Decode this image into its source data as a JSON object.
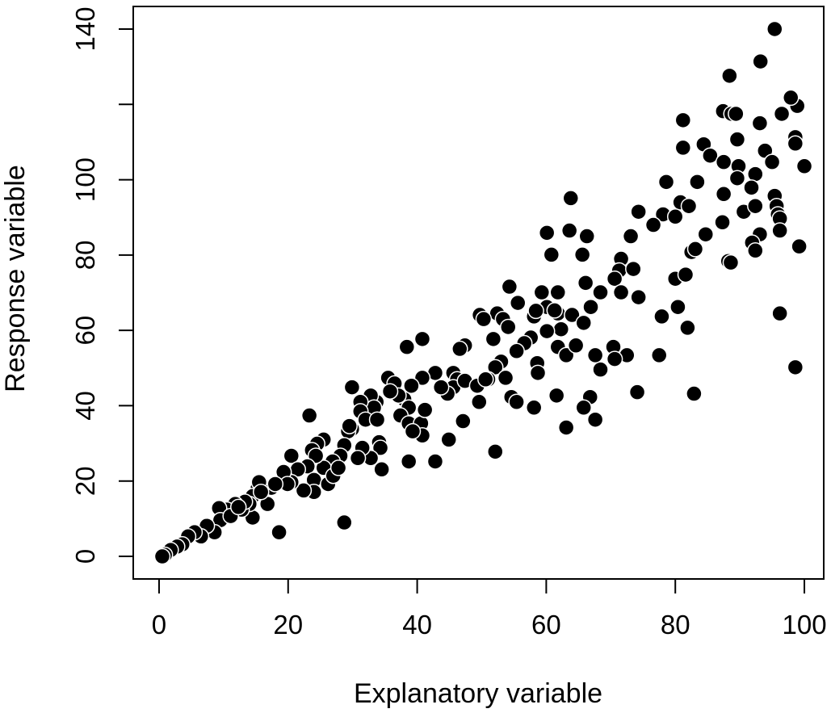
{
  "chart_data": {
    "type": "scatter",
    "title": "",
    "xlabel": "Explanatory variable",
    "ylabel": "Response variable",
    "xlim": [
      -4,
      103
    ],
    "ylim": [
      -6,
      146
    ],
    "x_ticks": [
      0,
      20,
      40,
      60,
      80,
      100
    ],
    "x_tick_labels": [
      "0",
      "20",
      "40",
      "60",
      "80",
      "100"
    ],
    "y_ticks": [
      0,
      20,
      40,
      60,
      80,
      100,
      120,
      140
    ],
    "y_tick_labels": [
      "0",
      "20",
      "40",
      "60",
      "80",
      "100",
      "",
      "140"
    ],
    "grid": false,
    "legend": "none",
    "marker_fill": "#000000",
    "marker_edge": "#ffffff",
    "points": [
      [
        100,
        103.6
      ],
      [
        98.9,
        119.6
      ],
      [
        97.9,
        121.8
      ],
      [
        98.6,
        111.3
      ],
      [
        98.6,
        109.6
      ],
      [
        95.4,
        140
      ],
      [
        93.2,
        131.4
      ],
      [
        88.4,
        127.6
      ],
      [
        87.4,
        118.2
      ],
      [
        88.7,
        117.5
      ],
      [
        89.4,
        117.5
      ],
      [
        81.2,
        115.8
      ],
      [
        93.1,
        115
      ],
      [
        96.5,
        117.5
      ],
      [
        81.2,
        108.5
      ],
      [
        84.4,
        109.4
      ],
      [
        85.4,
        106.4
      ],
      [
        87.5,
        104.7
      ],
      [
        89.6,
        110.7
      ],
      [
        93.9,
        107.7
      ],
      [
        95,
        104.7
      ],
      [
        89.8,
        103.6
      ],
      [
        89.6,
        100.4
      ],
      [
        92.4,
        101.5
      ],
      [
        91.8,
        97.9
      ],
      [
        95.4,
        95.7
      ],
      [
        95.7,
        93
      ],
      [
        95.9,
        90.8
      ],
      [
        96.2,
        89.7
      ],
      [
        90.6,
        91.5
      ],
      [
        92.4,
        93
      ],
      [
        87.5,
        96.2
      ],
      [
        78.6,
        99.4
      ],
      [
        83.4,
        99.4
      ],
      [
        80.8,
        94
      ],
      [
        82.1,
        93
      ],
      [
        78.1,
        90.8
      ],
      [
        76.6,
        88
      ],
      [
        74.3,
        91.5
      ],
      [
        73.1,
        85
      ],
      [
        80,
        90.2
      ],
      [
        87.3,
        88.7
      ],
      [
        84.7,
        85.5
      ],
      [
        82.5,
        80.8
      ],
      [
        83.1,
        81.6
      ],
      [
        93.1,
        85.5
      ],
      [
        91.9,
        83.3
      ],
      [
        92.4,
        81.2
      ],
      [
        88.2,
        78.4
      ],
      [
        88.6,
        78
      ],
      [
        96.2,
        86.5
      ],
      [
        99.2,
        82.3
      ],
      [
        63.8,
        95.1
      ],
      [
        60.1,
        85.9
      ],
      [
        63.6,
        86.5
      ],
      [
        66.3,
        85
      ],
      [
        65.6,
        80.1
      ],
      [
        60.8,
        80.1
      ],
      [
        71.6,
        79
      ],
      [
        71.3,
        75.9
      ],
      [
        73.5,
        76.3
      ],
      [
        70.6,
        73.7
      ],
      [
        66.1,
        72.6
      ],
      [
        68.4,
        70.1
      ],
      [
        71.6,
        70.1
      ],
      [
        74.3,
        68.8
      ],
      [
        80,
        73.7
      ],
      [
        81.6,
        74.8
      ],
      [
        80.4,
        66.2
      ],
      [
        81.9,
        60.7
      ],
      [
        77.9,
        63.7
      ],
      [
        96.2,
        64.5
      ],
      [
        98.6,
        50.2
      ],
      [
        82.9,
        43.2
      ],
      [
        74.1,
        43.6
      ],
      [
        77.5,
        53.4
      ],
      [
        72.5,
        53.4
      ],
      [
        70.4,
        55.6
      ],
      [
        70.6,
        52.4
      ],
      [
        68.4,
        49.6
      ],
      [
        67.6,
        53.4
      ],
      [
        66.9,
        66.2
      ],
      [
        66.8,
        42.3
      ],
      [
        67.6,
        36.3
      ],
      [
        61.6,
        42.7
      ],
      [
        65.8,
        39.5
      ],
      [
        63.1,
        34.2
      ],
      [
        52.1,
        27.8
      ],
      [
        44.9,
        31
      ],
      [
        42.8,
        25.2
      ],
      [
        38.7,
        25.2
      ],
      [
        47.1,
        35.9
      ],
      [
        54.3,
        71.6
      ],
      [
        55.6,
        67.3
      ],
      [
        59.3,
        70.1
      ],
      [
        61.8,
        70.1
      ],
      [
        60.1,
        66.2
      ],
      [
        61.8,
        64.5
      ],
      [
        61.3,
        65.3
      ],
      [
        64,
        64.1
      ],
      [
        62.3,
        60.3
      ],
      [
        60.1,
        59.8
      ],
      [
        58.1,
        63.7
      ],
      [
        58.4,
        65.2
      ],
      [
        57.6,
        58.1
      ],
      [
        56.6,
        56.6
      ],
      [
        55.4,
        54.5
      ],
      [
        53,
        51.7
      ],
      [
        52.1,
        50.2
      ],
      [
        51,
        47
      ],
      [
        52.4,
        64.5
      ],
      [
        53.3,
        63
      ],
      [
        54.1,
        60.9
      ],
      [
        49.7,
        64.1
      ],
      [
        50.3,
        63
      ],
      [
        51.8,
        57.7
      ],
      [
        53.7,
        47.4
      ],
      [
        54.6,
        42.3
      ],
      [
        55.4,
        41
      ],
      [
        58.6,
        51.3
      ],
      [
        58.7,
        48.7
      ],
      [
        58.1,
        39.5
      ],
      [
        61.8,
        55.6
      ],
      [
        63.1,
        53.4
      ],
      [
        64.6,
        56
      ],
      [
        65.8,
        62
      ],
      [
        49.6,
        41
      ],
      [
        47.4,
        56
      ],
      [
        46.6,
        55.1
      ],
      [
        45.6,
        48.7
      ],
      [
        46.2,
        47
      ],
      [
        45.6,
        44.9
      ],
      [
        44.7,
        43.2
      ],
      [
        47.4,
        46.6
      ],
      [
        49.3,
        45.3
      ],
      [
        50.6,
        47
      ],
      [
        42.8,
        48.7
      ],
      [
        40.8,
        57.7
      ],
      [
        40.8,
        47.4
      ],
      [
        43.7,
        44.9
      ],
      [
        39.1,
        45.3
      ],
      [
        38.4,
        55.6
      ],
      [
        38,
        41.7
      ],
      [
        38.7,
        39.5
      ],
      [
        37.4,
        37.4
      ],
      [
        38.7,
        35.3
      ],
      [
        40.6,
        35.3
      ],
      [
        41.2,
        38.9
      ],
      [
        40.8,
        32.1
      ],
      [
        39.3,
        33.2
      ],
      [
        35.5,
        47.4
      ],
      [
        36.5,
        45.9
      ],
      [
        37.1,
        42.7
      ],
      [
        35.8,
        43.8
      ],
      [
        33.7,
        41
      ],
      [
        32.8,
        42.7
      ],
      [
        33.3,
        39.5
      ],
      [
        31.2,
        41
      ],
      [
        31.2,
        38.5
      ],
      [
        29.9,
        44.9
      ],
      [
        32,
        36.3
      ],
      [
        33.8,
        36.3
      ],
      [
        34.1,
        30.3
      ],
      [
        34.3,
        28.8
      ],
      [
        34.5,
        23.1
      ],
      [
        32.8,
        26.1
      ],
      [
        31.5,
        28.8
      ],
      [
        29.9,
        33.8
      ],
      [
        29.3,
        33.2
      ],
      [
        29.5,
        34.6
      ],
      [
        28.7,
        29.5
      ],
      [
        28.1,
        26.7
      ],
      [
        30.8,
        26.1
      ],
      [
        26.9,
        25.2
      ],
      [
        25.5,
        23.5
      ],
      [
        25.5,
        31
      ],
      [
        24.5,
        29.9
      ],
      [
        23.7,
        28.2
      ],
      [
        23.3,
        37.4
      ],
      [
        24.3,
        26.7
      ],
      [
        23,
        23.9
      ],
      [
        24,
        20.3
      ],
      [
        24,
        17.1
      ],
      [
        22.4,
        17.5
      ],
      [
        20.5,
        26.7
      ],
      [
        21.5,
        23.1
      ],
      [
        20.5,
        19.7
      ],
      [
        19.3,
        22.4
      ],
      [
        19.9,
        19.2
      ],
      [
        26.2,
        19.2
      ],
      [
        27,
        21.4
      ],
      [
        27.8,
        23.5
      ],
      [
        18.6,
        6.4
      ],
      [
        28.7,
        9
      ],
      [
        17.4,
        18.2
      ],
      [
        16.8,
        13.9
      ],
      [
        15.3,
        18.2
      ],
      [
        15.5,
        19.7
      ],
      [
        14.5,
        16
      ],
      [
        14.5,
        10.3
      ],
      [
        14,
        13.9
      ],
      [
        12.8,
        12.4
      ],
      [
        13.3,
        14.5
      ],
      [
        11.8,
        13.9
      ],
      [
        10.5,
        12.4
      ],
      [
        9.3,
        12.8
      ],
      [
        9.5,
        9.6
      ],
      [
        8.6,
        6.4
      ],
      [
        7.4,
        8.1
      ],
      [
        6.5,
        5.3
      ],
      [
        5.5,
        6.4
      ],
      [
        4.5,
        5.3
      ],
      [
        3.6,
        3.2
      ],
      [
        2.8,
        2.6
      ],
      [
        1.8,
        1.7
      ],
      [
        0.9,
        0.4
      ],
      [
        0.5,
        0
      ],
      [
        11.1,
        10.7
      ],
      [
        12.3,
        13.1
      ],
      [
        15.8,
        17.1
      ],
      [
        18,
        19.2
      ]
    ]
  }
}
